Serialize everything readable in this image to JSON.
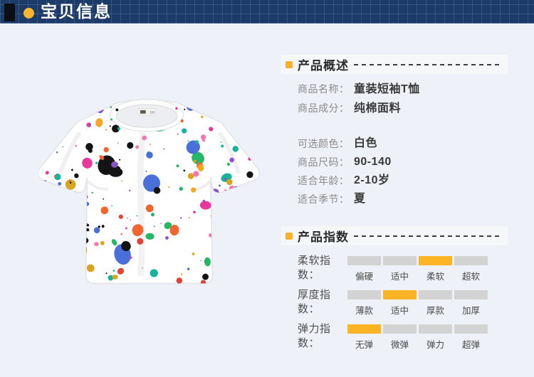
{
  "top_bar": {
    "title": "宝贝信息",
    "bar_color": "#1c3b69",
    "accent_dot_color": "#f8b62d",
    "title_color": "#ffffff"
  },
  "product_image": {
    "description": "白色童装短袖T恤，彩色颜料泼墨圆点印花",
    "collar_tag_text": "90",
    "splatter_palette": [
      "#141414",
      "#141414",
      "#f26430",
      "#e6399b",
      "#27b666",
      "#4a6fd8",
      "#d9a41f",
      "#17b39b",
      "#8a53c9",
      "#ef7bb0",
      "#e04438",
      "#f5a623"
    ]
  },
  "overview": {
    "title": "产品概述",
    "bullet_color": "#fbb028",
    "groups": [
      [
        {
          "label": "商品名称：",
          "value": "童装短袖T恤"
        },
        {
          "label": "商品成分：",
          "value": "纯棉面料"
        }
      ],
      [
        {
          "label": "可选颜色：",
          "value": "白色"
        },
        {
          "label": "商品尺码：",
          "value": "90-140"
        },
        {
          "label": "适合年龄：",
          "value": "2-10岁"
        },
        {
          "label": "适合季节：",
          "value": "夏"
        }
      ]
    ]
  },
  "index": {
    "title": "产品指数",
    "bullet_color": "#fbb028",
    "active_color": "#fcb324",
    "inactive_color": "#d3d3d3",
    "rows": [
      {
        "label": "柔软指数：",
        "levels": [
          "偏硬",
          "适中",
          "柔软",
          "超软"
        ],
        "active": 2
      },
      {
        "label": "厚度指数：",
        "levels": [
          "薄款",
          "适中",
          "厚款",
          "加厚"
        ],
        "active": 1
      },
      {
        "label": "弹力指数：",
        "levels": [
          "无弹",
          "微弹",
          "弹力",
          "超弹"
        ],
        "active": 0
      }
    ]
  }
}
